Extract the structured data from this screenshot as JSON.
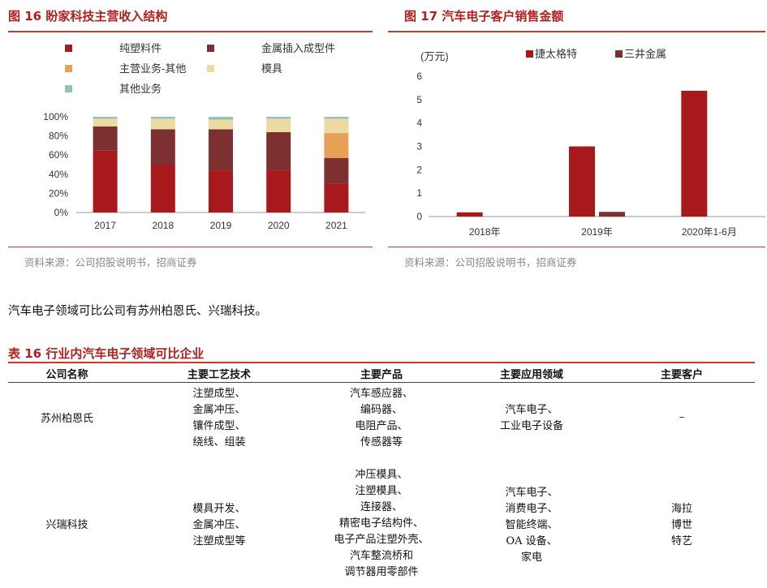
{
  "figure16": {
    "title": "图 16  盼家科技主营收入结构",
    "source": "资料来源：公司招股说明书，招商证券",
    "chart_data": {
      "type": "bar",
      "stacked": true,
      "categories": [
        "2017",
        "2018",
        "2019",
        "2020",
        "2021"
      ],
      "y_ticks": [
        "0%",
        "20%",
        "40%",
        "60%",
        "80%",
        "100%"
      ],
      "ylim": [
        0,
        100
      ],
      "legend_position": "top",
      "series": [
        {
          "name": "纯塑料件",
          "color": "#a8191b",
          "values": [
            65,
            50,
            44,
            44,
            30
          ]
        },
        {
          "name": "金属插入成型件",
          "color": "#7c3030",
          "values": [
            25,
            37,
            43,
            40,
            27
          ]
        },
        {
          "name": "主营业务-其他",
          "color": "#e8a057",
          "values": [
            0,
            0,
            0,
            0,
            26
          ]
        },
        {
          "name": "模具",
          "color": "#ecdba0",
          "values": [
            8,
            11,
            10,
            14,
            15
          ]
        },
        {
          "name": "其他业务",
          "color": "#8ec3be",
          "values": [
            2,
            2,
            3,
            2,
            2
          ]
        }
      ]
    }
  },
  "figure17": {
    "title": "图 17  汽车电子客户销售金额",
    "source": "资料来源：公司招股说明书，招商证券",
    "chart_data": {
      "type": "bar",
      "categories": [
        "2018年",
        "2019年",
        "2020年1-6月"
      ],
      "unit_label": "(万元)",
      "y_ticks": [
        "0",
        "1",
        "2",
        "3",
        "4",
        "5",
        "6"
      ],
      "ylim": [
        0,
        6
      ],
      "legend_position": "top",
      "series": [
        {
          "name": "捷太格特",
          "color": "#a8191b",
          "values": [
            0.18,
            3.0,
            5.38
          ]
        },
        {
          "name": "三井金属",
          "color": "#7c3030",
          "values": [
            0,
            0.2,
            0
          ]
        }
      ]
    }
  },
  "paragraph": "汽车电子领域可比公司有苏州柏恩氏、兴瑞科技。",
  "table16": {
    "title": "表 16 行业内汽车电子领域可比企业",
    "headers": [
      "公司名称",
      "主要工艺技术",
      "主要产品",
      "主要应用领域",
      "主要客户"
    ],
    "rows": [
      {
        "company": "苏州柏恩氏",
        "tech": [
          "注塑成型、",
          "金属冲压、",
          "镶件成型、",
          "绕线、组装"
        ],
        "products": [
          "汽车感应器、",
          "编码器、",
          "电阻产品、",
          "传感器等"
        ],
        "fields": [
          "汽车电子、",
          "工业电子设备"
        ],
        "customers": [
          "–"
        ]
      },
      {
        "company": "兴瑞科技",
        "tech": [
          "模具开发、",
          "金属冲压、",
          "注塑成型等"
        ],
        "products": [
          "冲压模具、",
          "注塑模具、",
          "连接器、",
          "精密电子结构件、",
          "电子产品注塑外壳、",
          "汽车整流桥和",
          "调节器用零部件"
        ],
        "fields": [
          "汽车电子、",
          "消费电子、",
          "智能终端、",
          "OA 设备、",
          "家电"
        ],
        "customers": [
          "海拉",
          "博世",
          "特艺"
        ]
      }
    ]
  }
}
